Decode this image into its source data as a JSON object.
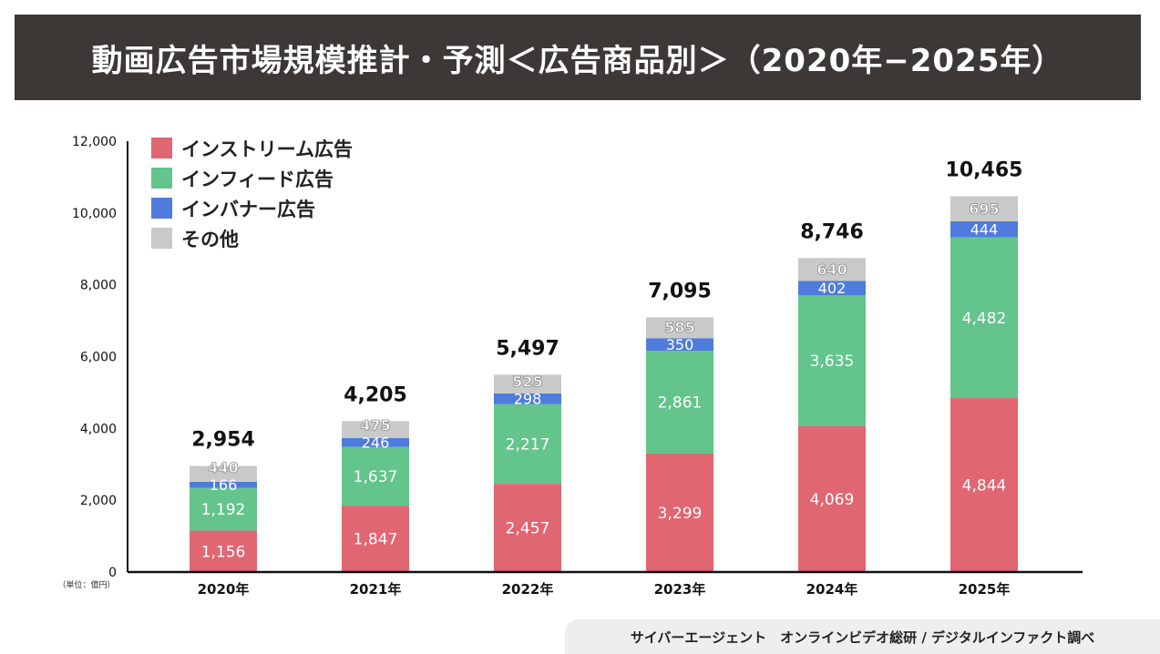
{
  "title": "動画広告市場規模推計・予測＜広告商品別＞（2020年−2025年）",
  "footer": "サイバーエージェント　オンラインビデオ総研 / デジタルインファクト調べ",
  "chart_data": {
    "type": "bar",
    "stacked": true,
    "title": "動画広告市場規模推計・予測＜広告商品別＞（2020年−2025年）",
    "unit_label": "（単位：億円）",
    "categories": [
      "2020年",
      "2021年",
      "2022年",
      "2023年",
      "2024年",
      "2025年"
    ],
    "series": [
      {
        "name": "インストリーム広告",
        "color": "#e06672",
        "values": [
          1156,
          1847,
          2457,
          3299,
          4069,
          4844
        ]
      },
      {
        "name": "インフィード広告",
        "color": "#63c48c",
        "values": [
          1192,
          1637,
          2217,
          2861,
          3635,
          4482
        ]
      },
      {
        "name": "インバナー広告",
        "color": "#4f7bdc",
        "values": [
          166,
          246,
          298,
          350,
          402,
          444
        ]
      },
      {
        "name": "その他",
        "color": "#c9c9c9",
        "values": [
          440,
          475,
          525,
          585,
          640,
          695
        ]
      }
    ],
    "totals": [
      2954,
      4205,
      5497,
      7095,
      8746,
      10465
    ],
    "total_labels": [
      "2,954",
      "4,205",
      "5,497",
      "7,095",
      "8,746",
      "10,465"
    ],
    "value_labels": [
      [
        "1,156",
        "1,847",
        "2,457",
        "3,299",
        "4,069",
        "4,844"
      ],
      [
        "1,192",
        "1,637",
        "2,217",
        "2,861",
        "3,635",
        "4,482"
      ],
      [
        "166",
        "246",
        "298",
        "350",
        "402",
        "444"
      ],
      [
        "440",
        "475",
        "525",
        "585",
        "640",
        "695"
      ]
    ],
    "yticks": [
      0,
      2000,
      4000,
      6000,
      8000,
      10000,
      12000
    ],
    "ytick_labels": [
      "0",
      "2,000",
      "4,000",
      "6,000",
      "8,000",
      "10,000",
      "12,000"
    ],
    "ylim": [
      0,
      12000
    ],
    "legend": "top-left"
  }
}
